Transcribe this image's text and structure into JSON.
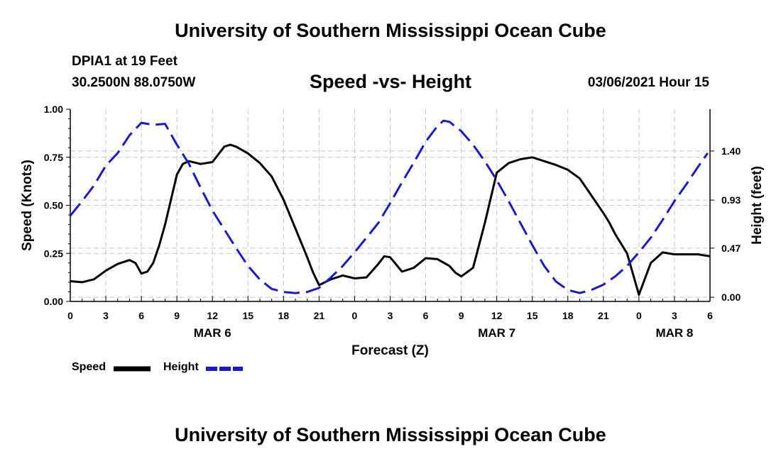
{
  "header": {
    "title": "University of Southern Mississippi Ocean Cube",
    "station": "DPIA1 at 19 Feet",
    "coordinates": "30.2500N 88.0750W",
    "datetime": "03/06/2021 Hour 15"
  },
  "footer": {
    "title": "University of Southern Mississippi Ocean Cube"
  },
  "legend": {
    "speed_label": "Speed",
    "height_label": "Height"
  },
  "colors": {
    "speed": "#000000",
    "height": "#1a1acc",
    "grid": "#c8c8c8"
  },
  "chart_data": {
    "type": "line",
    "title": "Speed -vs- Height",
    "xlabel": "Forecast (Z)",
    "ylabel": "Speed (Knots)",
    "y2label": "Height (feet)",
    "xlim": [
      0,
      54
    ],
    "ylim": [
      0,
      1.0
    ],
    "y2lim": [
      -0.04,
      1.8
    ],
    "x_ticks": [
      0,
      3,
      6,
      9,
      12,
      15,
      18,
      21,
      24,
      27,
      30,
      33,
      36,
      39,
      42,
      45,
      48,
      51,
      54
    ],
    "x_tick_labels": [
      "0",
      "3",
      "6",
      "9",
      "12",
      "15",
      "18",
      "21",
      "0",
      "3",
      "6",
      "9",
      "12",
      "15",
      "18",
      "21",
      "0",
      "3",
      "6"
    ],
    "y_ticks": [
      0,
      0.25,
      0.5,
      0.75,
      1.0
    ],
    "y_tick_labels": [
      "0.00",
      "0.25",
      "0.50",
      "0.75",
      "1.00"
    ],
    "y2_ticks": [
      0,
      0.47,
      0.93,
      1.4
    ],
    "y2_tick_labels": [
      "0.00",
      "0.47",
      "0.93",
      "1.40"
    ],
    "day_labels": [
      {
        "x": 12,
        "label": "MAR 6"
      },
      {
        "x": 36,
        "label": "MAR 7"
      },
      {
        "x": 51,
        "label": "MAR 8"
      }
    ],
    "grid": true,
    "series": [
      {
        "name": "Speed",
        "axis": "left",
        "style": "solid",
        "x": [
          0,
          1,
          2,
          3,
          4,
          5,
          5.5,
          6,
          6.5,
          7,
          7.5,
          8,
          9,
          9.5,
          10,
          11,
          12,
          13,
          13.5,
          14,
          15,
          16,
          17,
          18,
          19,
          20,
          20.5,
          21,
          22,
          23,
          24,
          25,
          26,
          26.5,
          27,
          28,
          29,
          30,
          31,
          32,
          32.5,
          33,
          34,
          35,
          36,
          37,
          38,
          39,
          40,
          41,
          42,
          43,
          44,
          45,
          45.5,
          46,
          47,
          48,
          49,
          50,
          51,
          52,
          53,
          53.5,
          54
        ],
        "values": [
          0.105,
          0.1,
          0.115,
          0.16,
          0.195,
          0.215,
          0.2,
          0.145,
          0.155,
          0.2,
          0.29,
          0.4,
          0.66,
          0.715,
          0.73,
          0.715,
          0.725,
          0.805,
          0.815,
          0.805,
          0.77,
          0.72,
          0.65,
          0.53,
          0.38,
          0.23,
          0.15,
          0.085,
          0.115,
          0.135,
          0.12,
          0.125,
          0.195,
          0.235,
          0.23,
          0.155,
          0.175,
          0.225,
          0.22,
          0.185,
          0.15,
          0.13,
          0.175,
          0.41,
          0.67,
          0.72,
          0.74,
          0.75,
          0.73,
          0.71,
          0.685,
          0.64,
          0.55,
          0.46,
          0.41,
          0.35,
          0.25,
          0.035,
          0.2,
          0.255,
          0.245,
          0.245,
          0.245,
          0.24,
          0.235
        ]
      },
      {
        "name": "Height",
        "axis": "right",
        "style": "dashed",
        "x": [
          0,
          1,
          2,
          3,
          4,
          5,
          6,
          7,
          8,
          9,
          10,
          11,
          12,
          13,
          14,
          15,
          16,
          17,
          18,
          19,
          20,
          21,
          22,
          23,
          24,
          25,
          26,
          27,
          28,
          29,
          30,
          31,
          31.5,
          32,
          33,
          34,
          35,
          36,
          37,
          38,
          39,
          40,
          41,
          42,
          43,
          44,
          45,
          46,
          47,
          48,
          49,
          50,
          51,
          52,
          53,
          53.8
        ],
        "values": [
          0.78,
          0.92,
          1.07,
          1.26,
          1.38,
          1.55,
          1.67,
          1.65,
          1.66,
          1.46,
          1.28,
          1.05,
          0.83,
          0.65,
          0.47,
          0.3,
          0.17,
          0.08,
          0.05,
          0.04,
          0.05,
          0.09,
          0.19,
          0.3,
          0.43,
          0.57,
          0.71,
          0.9,
          1.1,
          1.29,
          1.49,
          1.64,
          1.69,
          1.68,
          1.59,
          1.46,
          1.3,
          1.12,
          0.92,
          0.71,
          0.5,
          0.3,
          0.15,
          0.07,
          0.04,
          0.07,
          0.12,
          0.2,
          0.3,
          0.43,
          0.57,
          0.74,
          0.92,
          1.08,
          1.25,
          1.38
        ]
      }
    ]
  }
}
